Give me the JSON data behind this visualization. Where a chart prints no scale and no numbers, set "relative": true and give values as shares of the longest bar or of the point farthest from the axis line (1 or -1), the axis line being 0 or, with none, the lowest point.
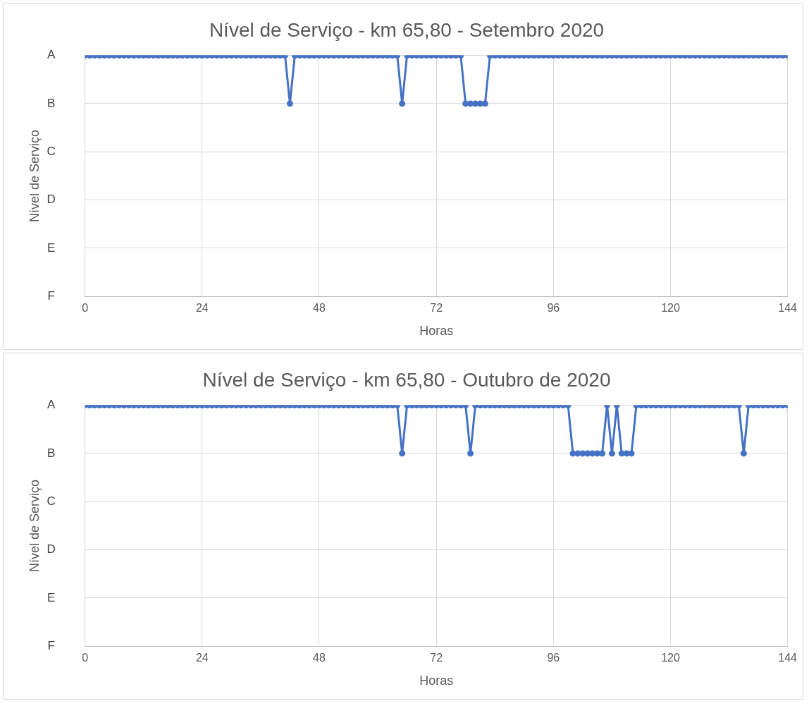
{
  "chart_data": [
    {
      "type": "line",
      "title": "Nível de Serviço - km 65,80 - Setembro 2020",
      "xlabel": "Horas",
      "ylabel": "Nível de Serviço",
      "legend": false,
      "grid": true,
      "marker": "circle",
      "line_style": "solid",
      "relative": true,
      "xlim": [
        0,
        144
      ],
      "xticks": [
        0,
        24,
        48,
        72,
        96,
        120,
        144
      ],
      "annotations": [
        "A",
        "B",
        "C",
        "D",
        "E",
        "F"
      ],
      "x": [
        0,
        1,
        2,
        3,
        4,
        5,
        6,
        7,
        8,
        9,
        10,
        11,
        12,
        13,
        14,
        15,
        16,
        17,
        18,
        19,
        20,
        21,
        22,
        23,
        24,
        25,
        26,
        27,
        28,
        29,
        30,
        31,
        32,
        33,
        34,
        35,
        36,
        37,
        38,
        39,
        40,
        41,
        42,
        43,
        44,
        45,
        46,
        47,
        48,
        49,
        50,
        51,
        52,
        53,
        54,
        55,
        56,
        57,
        58,
        59,
        60,
        61,
        62,
        63,
        64,
        65,
        66,
        67,
        68,
        69,
        70,
        71,
        72,
        73,
        74,
        75,
        76,
        77,
        78,
        79,
        80,
        81,
        82,
        83,
        84,
        85,
        86,
        87,
        88,
        89,
        90,
        91,
        92,
        93,
        94,
        95,
        96,
        97,
        98,
        99,
        100,
        101,
        102,
        103,
        104,
        105,
        106,
        107,
        108,
        109,
        110,
        111,
        112,
        113,
        114,
        115,
        116,
        117,
        118,
        119,
        120,
        121,
        122,
        123,
        124,
        125,
        126,
        127,
        128,
        129,
        130,
        131,
        132,
        133,
        134,
        135,
        136,
        137,
        138,
        139,
        140,
        141,
        142,
        143,
        144
      ],
      "series": [
        {
          "color": "#4472c4",
          "values": [
            1,
            1,
            1,
            1,
            1,
            1,
            1,
            1,
            1,
            1,
            1,
            1,
            1,
            1,
            1,
            1,
            1,
            1,
            1,
            1,
            1,
            1,
            1,
            1,
            1,
            1,
            1,
            1,
            1,
            1,
            1,
            1,
            1,
            1,
            1,
            1,
            1,
            1,
            1,
            1,
            1,
            1,
            0.8,
            1,
            1,
            1,
            1,
            1,
            1,
            1,
            1,
            1,
            1,
            1,
            1,
            1,
            1,
            1,
            1,
            1,
            1,
            1,
            1,
            1,
            1,
            0.8,
            1,
            1,
            1,
            1,
            1,
            1,
            1,
            1,
            1,
            1,
            1,
            1,
            0.8,
            0.8,
            0.8,
            0.8,
            0.8,
            1,
            1,
            1,
            1,
            1,
            1,
            1,
            1,
            1,
            1,
            1,
            1,
            1,
            1,
            1,
            1,
            1,
            1,
            1,
            1,
            1,
            1,
            1,
            1,
            1,
            1,
            1,
            1,
            1,
            1,
            1,
            1,
            1,
            1,
            1,
            1,
            1,
            1,
            1,
            1,
            1,
            1,
            1,
            1,
            1,
            1,
            1,
            1,
            1,
            1,
            1,
            1,
            1,
            1,
            1,
            1,
            1,
            1,
            1,
            1,
            1,
            1
          ]
        }
      ]
    },
    {
      "type": "line",
      "title": "Nível de Serviço - km 65,80 - Outubro de 2020",
      "xlabel": "Horas",
      "ylabel": "Nível de Serviço",
      "legend": false,
      "grid": true,
      "marker": "circle",
      "line_style": "solid",
      "relative": true,
      "xlim": [
        0,
        144
      ],
      "xticks": [
        0,
        24,
        48,
        72,
        96,
        120,
        144
      ],
      "annotations": [
        "A",
        "B",
        "C",
        "D",
        "E",
        "F"
      ],
      "x": [
        0,
        1,
        2,
        3,
        4,
        5,
        6,
        7,
        8,
        9,
        10,
        11,
        12,
        13,
        14,
        15,
        16,
        17,
        18,
        19,
        20,
        21,
        22,
        23,
        24,
        25,
        26,
        27,
        28,
        29,
        30,
        31,
        32,
        33,
        34,
        35,
        36,
        37,
        38,
        39,
        40,
        41,
        42,
        43,
        44,
        45,
        46,
        47,
        48,
        49,
        50,
        51,
        52,
        53,
        54,
        55,
        56,
        57,
        58,
        59,
        60,
        61,
        62,
        63,
        64,
        65,
        66,
        67,
        68,
        69,
        70,
        71,
        72,
        73,
        74,
        75,
        76,
        77,
        78,
        79,
        80,
        81,
        82,
        83,
        84,
        85,
        86,
        87,
        88,
        89,
        90,
        91,
        92,
        93,
        94,
        95,
        96,
        97,
        98,
        99,
        100,
        101,
        102,
        103,
        104,
        105,
        106,
        107,
        108,
        109,
        110,
        111,
        112,
        113,
        114,
        115,
        116,
        117,
        118,
        119,
        120,
        121,
        122,
        123,
        124,
        125,
        126,
        127,
        128,
        129,
        130,
        131,
        132,
        133,
        134,
        135,
        136,
        137,
        138,
        139,
        140,
        141,
        142,
        143,
        144
      ],
      "series": [
        {
          "color": "#4472c4",
          "values": [
            1,
            1,
            1,
            1,
            1,
            1,
            1,
            1,
            1,
            1,
            1,
            1,
            1,
            1,
            1,
            1,
            1,
            1,
            1,
            1,
            1,
            1,
            1,
            1,
            1,
            1,
            1,
            1,
            1,
            1,
            1,
            1,
            1,
            1,
            1,
            1,
            1,
            1,
            1,
            1,
            1,
            1,
            1,
            1,
            1,
            1,
            1,
            1,
            1,
            1,
            1,
            1,
            1,
            1,
            1,
            1,
            1,
            1,
            1,
            1,
            1,
            1,
            1,
            1,
            1,
            0.8,
            1,
            1,
            1,
            1,
            1,
            1,
            1,
            1,
            1,
            1,
            1,
            1,
            1,
            0.8,
            1,
            1,
            1,
            1,
            1,
            1,
            1,
            1,
            1,
            1,
            1,
            1,
            1,
            1,
            1,
            1,
            1,
            1,
            1,
            1,
            0.8,
            0.8,
            0.8,
            0.8,
            0.8,
            0.8,
            0.8,
            1,
            0.8,
            1,
            0.8,
            0.8,
            0.8,
            1,
            1,
            1,
            1,
            1,
            1,
            1,
            1,
            1,
            1,
            1,
            1,
            1,
            1,
            1,
            1,
            1,
            1,
            1,
            1,
            1,
            1,
            0.8,
            1,
            1,
            1,
            1,
            1,
            1,
            1,
            1,
            1
          ]
        }
      ]
    }
  ]
}
